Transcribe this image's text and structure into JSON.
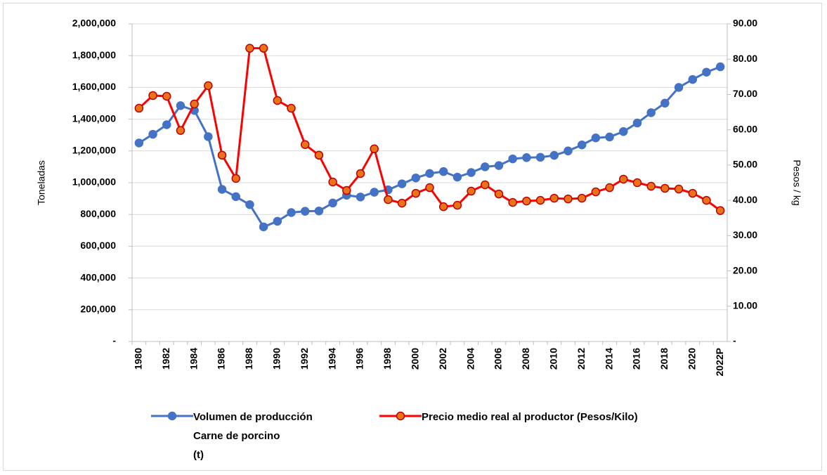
{
  "chart_data": {
    "type": "line",
    "categories": [
      "1980",
      null,
      "1982",
      null,
      "1984",
      null,
      "1986",
      null,
      "1988",
      null,
      "1990",
      null,
      "1992",
      null,
      "1994",
      null,
      "1996",
      null,
      "1998",
      null,
      "2000",
      null,
      "2002",
      null,
      "2004",
      null,
      "2006",
      null,
      "2008",
      null,
      "2010",
      null,
      "2012",
      null,
      "2014",
      null,
      "2016",
      null,
      "2018",
      null,
      "2020",
      null,
      "2022P"
    ],
    "y_label": "Toneladas",
    "y2_label": "Pesos / kg",
    "ylim": [
      0,
      2000000
    ],
    "yticks": [
      {
        "value": 0,
        "label": "-"
      },
      {
        "value": 200000,
        "label": "200,000"
      },
      {
        "value": 400000,
        "label": "400,000"
      },
      {
        "value": 600000,
        "label": "600,000"
      },
      {
        "value": 800000,
        "label": "800,000"
      },
      {
        "value": 1000000,
        "label": "1,000,000"
      },
      {
        "value": 1200000,
        "label": "1,200,000"
      },
      {
        "value": 1400000,
        "label": "1,400,000"
      },
      {
        "value": 1600000,
        "label": "1,600,000"
      },
      {
        "value": 1800000,
        "label": "1,800,000"
      },
      {
        "value": 2000000,
        "label": "2,000,000"
      }
    ],
    "y2lim": [
      0,
      90
    ],
    "y2ticks": [
      {
        "value": 0,
        "label": "-"
      },
      {
        "value": 10,
        "label": "10.00"
      },
      {
        "value": 20,
        "label": "20.00"
      },
      {
        "value": 30,
        "label": "30.00"
      },
      {
        "value": 40,
        "label": "40.00"
      },
      {
        "value": 50,
        "label": "50.00"
      },
      {
        "value": 60,
        "label": "60.00"
      },
      {
        "value": 70,
        "label": "70.00"
      },
      {
        "value": 80,
        "label": "80.00"
      },
      {
        "value": 90,
        "label": "90.00"
      }
    ],
    "grid": true,
    "legend": "bottom",
    "series": [
      {
        "name": "Volumen de producción\nCarne de porcino\n(t)",
        "color": "#4472c4",
        "marker_edge": "#4472c4",
        "values": [
          1250000,
          1305000,
          1365000,
          1485000,
          1455000,
          1290000,
          958000,
          912000,
          862000,
          722000,
          757000,
          812000,
          820000,
          822000,
          872000,
          921000,
          910000,
          940000,
          955000,
          993000,
          1030000,
          1058000,
          1070000,
          1035000,
          1064000,
          1100000,
          1108000,
          1150000,
          1158000,
          1160000,
          1172000,
          1200000,
          1238000,
          1282000,
          1288000,
          1322000,
          1376000,
          1441000,
          1501000,
          1600000,
          1650000,
          1696000,
          1730000
        ]
      },
      {
        "name": "Precio medio real al productor (Pesos/Kilo)",
        "color": "#ff0000",
        "marker_fill": "#e8731a",
        "marker_edge": "#c00000",
        "axis": "y2",
        "values": [
          66.1,
          69.7,
          69.5,
          59.8,
          67.3,
          72.5,
          52.8,
          46.2,
          83.1,
          83.1,
          68.3,
          66.1,
          55.8,
          52.8,
          45.2,
          42.8,
          47.6,
          54.6,
          40.2,
          39.2,
          42.0,
          43.6,
          38.2,
          38.6,
          42.6,
          44.4,
          41.8,
          39.4,
          39.8,
          40.0,
          40.6,
          40.4,
          40.6,
          42.4,
          43.6,
          46.0,
          45.0,
          44.0,
          43.4,
          43.2,
          42.0,
          40.0,
          37.1
        ]
      }
    ]
  }
}
